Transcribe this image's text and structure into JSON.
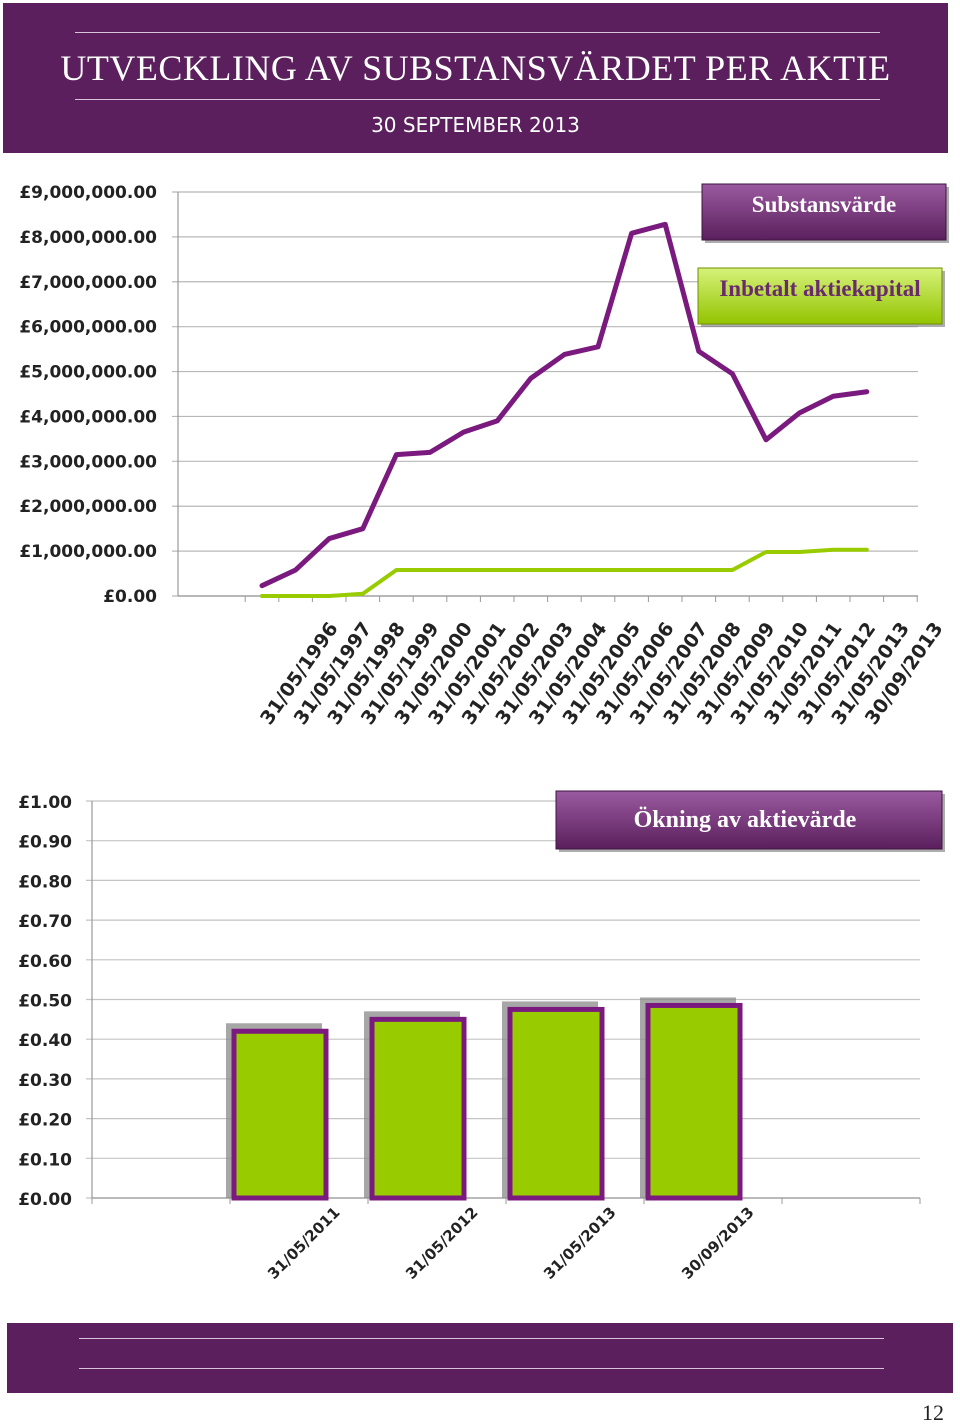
{
  "header": {
    "title": "UTVECKLING AV SUBSTANSVÄRDET PER AKTIE",
    "subtitle": "30 SEPTEMBER 2013"
  },
  "page_number": "12",
  "colors": {
    "brand": "#5a1f5c",
    "purple_line": "#7a1a7e",
    "green": "#99cc00"
  },
  "chart_data": [
    {
      "type": "line",
      "x": [
        "31/05/1996",
        "31/05/1997",
        "31/05/1998",
        "31/05/1999",
        "31/05/2000",
        "31/05/2001",
        "31/05/2002",
        "31/05/2003",
        "31/05/2004",
        "31/05/2005",
        "31/05/2006",
        "31/05/2007",
        "31/05/2008",
        "31/05/2009",
        "31/05/2010",
        "31/05/2011",
        "31/05/2012",
        "31/05/2013",
        "30/09/2013"
      ],
      "series": [
        {
          "name": "Substansvärde",
          "color": "#7a1a7e",
          "values": [
            230000,
            580000,
            1280000,
            1500000,
            3150000,
            3200000,
            3650000,
            3900000,
            4850000,
            5380000,
            5550000,
            8080000,
            8280000,
            5450000,
            4950000,
            3480000,
            4080000,
            4450000,
            4550000
          ]
        },
        {
          "name": "Inbetalt aktiekapital",
          "color": "#99cc00",
          "values": [
            0,
            0,
            0,
            50000,
            580000,
            580000,
            580000,
            580000,
            580000,
            580000,
            580000,
            580000,
            580000,
            580000,
            580000,
            980000,
            980000,
            1030000,
            1030000
          ]
        }
      ],
      "yticks": [
        "£0.00",
        "£1,000,000.00",
        "£2,000,000.00",
        "£3,000,000.00",
        "£4,000,000.00",
        "£5,000,000.00",
        "£6,000,000.00",
        "£7,000,000.00",
        "£8,000,000.00",
        "£9,000,000.00"
      ],
      "ylim": [
        0,
        9000000
      ],
      "grid": true,
      "legend_position": "top-right"
    },
    {
      "type": "bar",
      "categories": [
        "31/05/2011",
        "31/05/2012",
        "31/05/2013",
        "30/09/2013"
      ],
      "series": [
        {
          "name": "Ökning av aktievärde",
          "color": "#99cc00",
          "values": [
            0.42,
            0.45,
            0.475,
            0.485
          ]
        }
      ],
      "yticks": [
        "£0.00",
        "£0.10",
        "£0.20",
        "£0.30",
        "£0.40",
        "£0.50",
        "£0.60",
        "£0.70",
        "£0.80",
        "£0.90",
        "£1.00"
      ],
      "ylim": [
        0,
        1.0
      ],
      "grid": true,
      "legend_position": "top-right"
    }
  ]
}
